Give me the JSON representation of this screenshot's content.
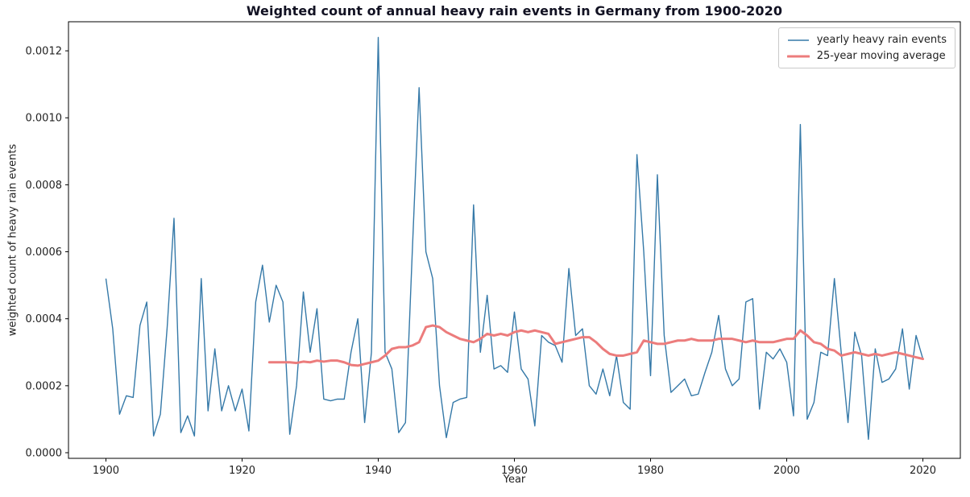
{
  "chart_data": {
    "type": "line",
    "title": "Weighted count of annual heavy rain events in Germany from 1900-2020",
    "xlabel": "Year",
    "ylabel": "weighted count of heavy rain events",
    "legend_position": "upper right",
    "grid": false,
    "xlim": [
      1894.5,
      2025.5
    ],
    "ylim": [
      -1.68e-05,
      0.0012868
    ],
    "xticks": [
      1900,
      1920,
      1940,
      1960,
      1980,
      2000,
      2020
    ],
    "yticks": [
      0.0,
      0.0002,
      0.0004,
      0.0006,
      0.0008,
      0.001,
      0.0012
    ],
    "series": [
      {
        "name": "yearly heavy rain events",
        "color": "#3579a8",
        "width": 1.4,
        "x_start": 1900,
        "values": [
          0.00052,
          0.00037,
          0.000115,
          0.00017,
          0.000165,
          0.00038,
          0.00045,
          5e-05,
          0.000115,
          0.000375,
          0.0007,
          6e-05,
          0.00011,
          5e-05,
          0.00052,
          0.000125,
          0.00031,
          0.000125,
          0.0002,
          0.000125,
          0.00019,
          6.5e-05,
          0.00045,
          0.00056,
          0.00039,
          0.0005,
          0.00045,
          5.5e-05,
          0.0002,
          0.00048,
          0.0003,
          0.00043,
          0.00016,
          0.000155,
          0.00016,
          0.00016,
          0.0003,
          0.0004,
          9e-05,
          0.0003,
          0.00124,
          0.0003,
          0.00025,
          6e-05,
          9e-05,
          0.0006,
          0.00109,
          0.0006,
          0.00052,
          0.0002,
          4.5e-05,
          0.00015,
          0.00016,
          0.000165,
          0.00074,
          0.0003,
          0.00047,
          0.00025,
          0.00026,
          0.00024,
          0.00042,
          0.00025,
          0.00022,
          8e-05,
          0.00035,
          0.00033,
          0.00032,
          0.00027,
          0.00055,
          0.00035,
          0.00037,
          0.0002,
          0.000175,
          0.00025,
          0.00017,
          0.00029,
          0.00015,
          0.00013,
          0.00089,
          0.0006,
          0.00023,
          0.00083,
          0.00035,
          0.00018,
          0.0002,
          0.00022,
          0.00017,
          0.000175,
          0.00024,
          0.0003,
          0.00041,
          0.00025,
          0.0002,
          0.00022,
          0.00045,
          0.00046,
          0.00013,
          0.0003,
          0.00028,
          0.00031,
          0.00027,
          0.00011,
          0.00098,
          0.0001,
          0.00015,
          0.0003,
          0.00029,
          0.00052,
          0.0003,
          9e-05,
          0.00036,
          0.00029,
          4e-05,
          0.00031,
          0.00021,
          0.00022,
          0.00025,
          0.00037,
          0.00019,
          0.00035,
          0.00028
        ]
      },
      {
        "name": "25-year moving average",
        "color": "#ec7c7c",
        "width": 3,
        "x_start": 1924,
        "values": [
          0.00027,
          0.00027,
          0.00027,
          0.00027,
          0.000268,
          0.000272,
          0.00027,
          0.000275,
          0.000272,
          0.000275,
          0.000275,
          0.00027,
          0.000262,
          0.00026,
          0.000265,
          0.00027,
          0.000275,
          0.00029,
          0.00031,
          0.000315,
          0.000315,
          0.00032,
          0.00033,
          0.000375,
          0.00038,
          0.000375,
          0.00036,
          0.00035,
          0.00034,
          0.000335,
          0.00033,
          0.00034,
          0.000355,
          0.00035,
          0.000355,
          0.00035,
          0.00036,
          0.000365,
          0.00036,
          0.000365,
          0.00036,
          0.000355,
          0.000325,
          0.00033,
          0.000335,
          0.00034,
          0.000345,
          0.000345,
          0.00033,
          0.00031,
          0.000295,
          0.00029,
          0.00029,
          0.000295,
          0.0003,
          0.000335,
          0.00033,
          0.000325,
          0.000325,
          0.00033,
          0.000335,
          0.000335,
          0.00034,
          0.000335,
          0.000335,
          0.000335,
          0.00034,
          0.00034,
          0.00034,
          0.000335,
          0.00033,
          0.000335,
          0.00033,
          0.00033,
          0.00033,
          0.000335,
          0.00034,
          0.00034,
          0.000365,
          0.00035,
          0.00033,
          0.000325,
          0.00031,
          0.000305,
          0.00029,
          0.000295,
          0.0003,
          0.000295,
          0.00029,
          0.000295,
          0.00029,
          0.000295,
          0.0003,
          0.000295,
          0.00029,
          0.000285,
          0.00028
        ]
      }
    ]
  }
}
